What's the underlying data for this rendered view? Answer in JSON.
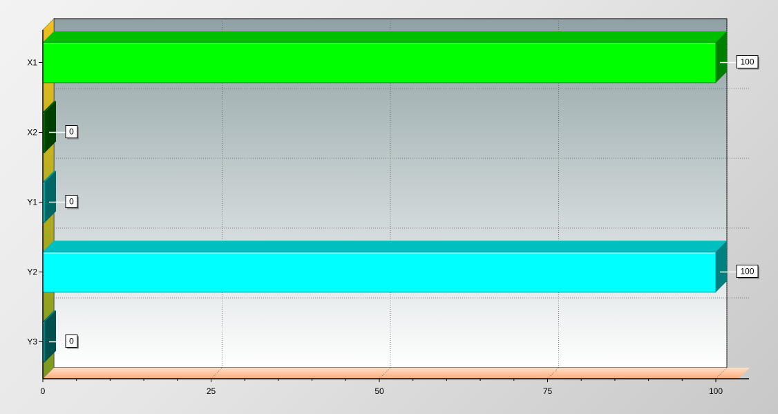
{
  "chart_data": {
    "type": "bar",
    "orientation": "horizontal",
    "title": "",
    "xlabel": "",
    "ylabel": "",
    "categories": [
      "X1",
      "X2",
      "Y1",
      "Y2",
      "Y3"
    ],
    "values": [
      100,
      0,
      0,
      100,
      0
    ],
    "data_labels": [
      "100",
      "0",
      "0",
      "100",
      "0"
    ],
    "xlim": [
      0,
      100
    ],
    "x_ticks": [
      0,
      25,
      50,
      75,
      100
    ],
    "x_tick_labels": [
      "0",
      "25",
      "50",
      "75",
      "100"
    ],
    "grid": true,
    "style": "3d",
    "bar_colors": [
      "#00ff00",
      "#008000",
      "#00cccc",
      "#00ffff",
      "#00a0a0"
    ]
  },
  "colors": {
    "plot_top": "#8fa1a4",
    "plot_bottom": "#ffffff",
    "left_wall_top": "#f0c020",
    "left_wall_bottom": "#7a9a20",
    "floor": "#ffaa77"
  }
}
